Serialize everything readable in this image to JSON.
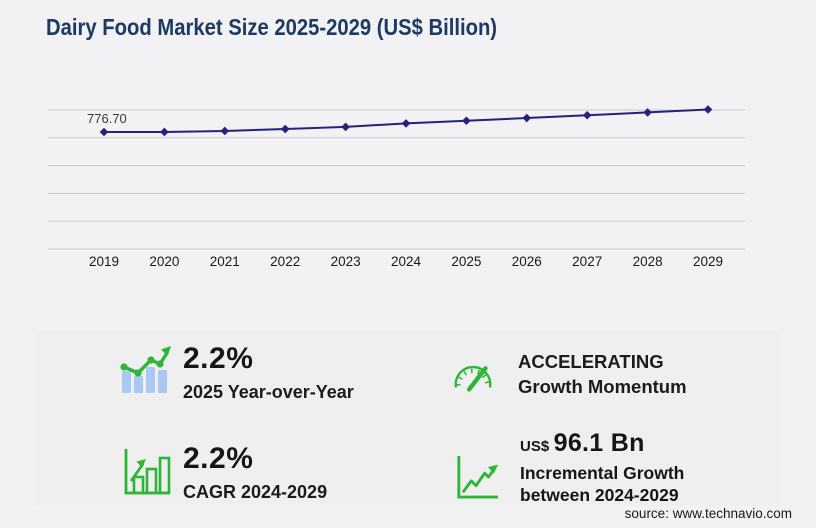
{
  "page": {
    "title": "Dairy Food Market Size 2025-2029 (US$ Billion)",
    "source": "source: www.technavio.com"
  },
  "colors": {
    "title_navy": "#1d3a63",
    "chart_line": "#23237a",
    "gridline": "#c9c8cc",
    "accent_green": "#2eb538",
    "bar_blue": "#a9c9f3",
    "page_bg": "#f2f1f3",
    "panel_bg": "#efeff0",
    "text_dark": "#161616"
  },
  "chart_data": {
    "type": "line",
    "title": "Dairy Food Market Size 2025-2029 (US$ Billion)",
    "x": [
      "2019",
      "2020",
      "2021",
      "2022",
      "2023",
      "2024",
      "2025",
      "2026",
      "2027",
      "2028",
      "2029"
    ],
    "series": [
      {
        "name": "Dairy food market size (US$ Billion)",
        "values": [
          776.7,
          777.0,
          784.0,
          797.0,
          812.0,
          836.0,
          854.4,
          873.2,
          892.4,
          912.0,
          932.1
        ]
      }
    ],
    "first_value_label": "776.70",
    "note": "Only the 2019 point is labeled (776.70); subsequent values are estimated from the plotted line",
    "marker": "diamond",
    "grid": true,
    "gridline_count": 6,
    "legend": false,
    "y_axis_labels": false
  },
  "stats": {
    "yoy": {
      "icon": "bar-chart-trend-up-icon",
      "value": "2.2%",
      "label": "2025 Year-over-Year"
    },
    "momentum": {
      "icon": "speedometer-icon",
      "line1": "ACCELERATING",
      "line2": "Growth Momentum"
    },
    "cagr": {
      "icon": "growth-bars-arrow-icon",
      "value": "2.2%",
      "label": "CAGR 2024-2029"
    },
    "incremental": {
      "icon": "line-growth-axes-icon",
      "currency": "US$",
      "amount": "96.1 Bn",
      "line1": "Incremental Growth",
      "line2": "between 2024-2029"
    }
  }
}
